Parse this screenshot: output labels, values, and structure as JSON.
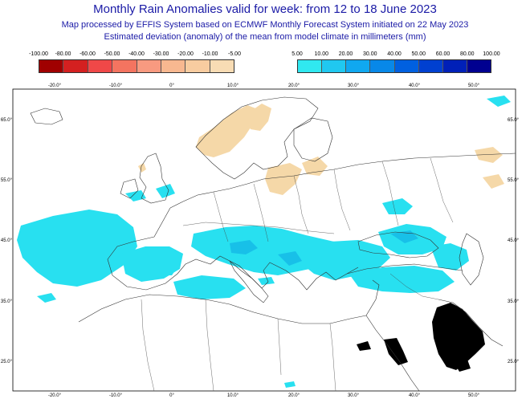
{
  "header": {
    "title": "Monthly Rain Anomalies valid for week: from 12 to 18 June 2023",
    "subtitle1": "Map processed by EFFIS System based on ECMWF Monthly Forecast System initiated on 22 May 2023",
    "subtitle2": "Estimated deviation (anomaly) of the mean from model climate in millimeters (mm)"
  },
  "legend_dry": {
    "labels": [
      "-100.00",
      "-80.00",
      "-60.00",
      "-50.00",
      "-40.00",
      "-30.00",
      "-20.00",
      "-10.00",
      "-5.00"
    ],
    "colors": [
      "#a00000",
      "#d42020",
      "#f04848",
      "#f47460",
      "#f89a80",
      "#f8b890",
      "#f8cca0",
      "#f8dcb4"
    ]
  },
  "legend_wet": {
    "labels": [
      "5.00",
      "10.00",
      "20.00",
      "30.00",
      "40.00",
      "50.00",
      "60.00",
      "80.00",
      "100.00"
    ],
    "colors": [
      "#30e8f0",
      "#20c8f0",
      "#10a8f0",
      "#0888e8",
      "#0060e0",
      "#0040d0",
      "#0020b8",
      "#000090"
    ]
  },
  "map": {
    "lon_ticks": [
      "-20.0°",
      "-10.0°",
      "0°",
      "10.0°",
      "20.0°",
      "30.0°",
      "40.0°",
      "50.0°"
    ],
    "lat_ticks": [
      "65.0°",
      "55.0°",
      "45.0°",
      "35.0°",
      "25.0°"
    ],
    "colors": {
      "land_outline": "#333333",
      "wet_anomaly": "#28e0f0",
      "wet_strong": "#18c0e8",
      "dry_anomaly": "#f5d8a8",
      "no_data": "#000000"
    }
  }
}
